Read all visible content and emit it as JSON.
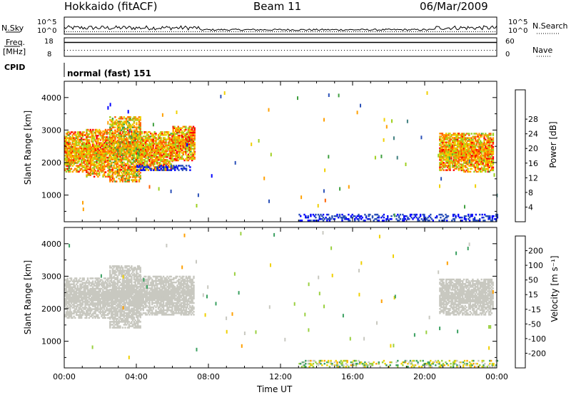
{
  "header": {
    "station": "Hokkaido (fitACF)",
    "beam": "Beam 11",
    "date": "06/Mar/2009"
  },
  "top_panels": {
    "nsky_label": "N.Sky",
    "nsearch_label": "N.Search",
    "noise_ticks_left": [
      "10^5",
      "10^0"
    ],
    "noise_ticks_right": [
      "10^5",
      "10^0"
    ],
    "freq_label_line1": "Freq.",
    "freq_label_line2": "[MHz]",
    "freq_ticks": [
      "18",
      "8"
    ],
    "nave_label": "Nave",
    "nave_ticks": [
      "60",
      "0"
    ],
    "cpid_label": "CPID",
    "cpid_value": "normal (fast) 151"
  },
  "chart_data": [
    {
      "type": "heatmap",
      "title": "",
      "xlabel": "Time UT",
      "ylabel": "Slant Range [km]",
      "x_tick_labels": [
        "00:00",
        "04:00",
        "08:00",
        "12:00",
        "16:00",
        "20:00",
        "00:00"
      ],
      "x_range_hours": [
        0,
        24
      ],
      "y_tick_labels": [
        "1000",
        "2000",
        "3000",
        "4000"
      ],
      "ylim": [
        180,
        4500
      ],
      "colorbar_label": "Power [dB]",
      "colorbar_ticks": [
        "4",
        "8",
        "12",
        "16",
        "20",
        "24",
        "28"
      ],
      "colorbar_range": [
        0,
        32
      ],
      "colorbar_colors": [
        "#0000ff",
        "#2a50b8",
        "#3f7f7f",
        "#3fa03f",
        "#9fd020",
        "#f0d000",
        "#ffa000",
        "#ff6000",
        "#ff0000"
      ],
      "regions": [
        {
          "t": [
            0.0,
            1.2
          ],
          "r": [
            1700,
            2950
          ],
          "v": [
            14,
            30
          ]
        },
        {
          "t": [
            1.2,
            2.5
          ],
          "r": [
            1550,
            3000
          ],
          "v": [
            14,
            30
          ]
        },
        {
          "t": [
            2.5,
            4.2
          ],
          "r": [
            1400,
            3400
          ],
          "v": [
            12,
            29
          ]
        },
        {
          "t": [
            4.2,
            6.0
          ],
          "r": [
            1750,
            2950
          ],
          "v": [
            14,
            30
          ]
        },
        {
          "t": [
            6.0,
            7.2
          ],
          "r": [
            2050,
            3100
          ],
          "v": [
            14,
            30
          ]
        },
        {
          "t": [
            20.8,
            22.0
          ],
          "r": [
            1750,
            2900
          ],
          "v": [
            14,
            30
          ]
        },
        {
          "t": [
            22.0,
            23.8
          ],
          "r": [
            1700,
            2900
          ],
          "v": [
            14,
            30
          ]
        },
        {
          "t": [
            4.0,
            7.0
          ],
          "r": [
            1750,
            1900
          ],
          "v": [
            2,
            6
          ]
        },
        {
          "t": [
            13.0,
            24.0
          ],
          "r": [
            200,
            400
          ],
          "v": [
            1,
            7
          ]
        }
      ]
    },
    {
      "type": "heatmap",
      "title": "",
      "xlabel": "Time UT",
      "ylabel": "Slant Range [km]",
      "x_tick_labels": [
        "00:00",
        "04:00",
        "08:00",
        "12:00",
        "16:00",
        "20:00",
        "00:00"
      ],
      "x_range_hours": [
        0,
        24
      ],
      "y_tick_labels": [
        "1000",
        "2000",
        "3000",
        "4000"
      ],
      "ylim": [
        180,
        4500
      ],
      "colorbar_label": "Velocity [m s⁻¹]",
      "colorbar_ticks": [
        "200",
        "100",
        "50",
        "15",
        "-15",
        "-50",
        "-100",
        "-200"
      ],
      "colorbar_colors": [
        "#2030c0",
        "#2a7fa0",
        "#3aa060",
        "#9ad040",
        "#c8c8c0",
        "#f0d000",
        "#ffa000",
        "#ff6000",
        "#ff0000"
      ],
      "ground_scatter_color": "#c8c8c0",
      "regions": [
        {
          "t": [
            0.0,
            2.5
          ],
          "r": [
            1700,
            2950
          ],
          "v": [
            -15,
            15
          ]
        },
        {
          "t": [
            2.5,
            4.2
          ],
          "r": [
            1400,
            3300
          ],
          "v": [
            -15,
            15
          ]
        },
        {
          "t": [
            4.2,
            7.2
          ],
          "r": [
            1800,
            3000
          ],
          "v": [
            -15,
            15
          ]
        },
        {
          "t": [
            20.8,
            23.8
          ],
          "r": [
            1800,
            2900
          ],
          "v": [
            -15,
            15
          ]
        },
        {
          "t": [
            13.0,
            24.0
          ],
          "r": [
            200,
            400
          ],
          "v": [
            -60,
            80
          ]
        }
      ]
    }
  ]
}
